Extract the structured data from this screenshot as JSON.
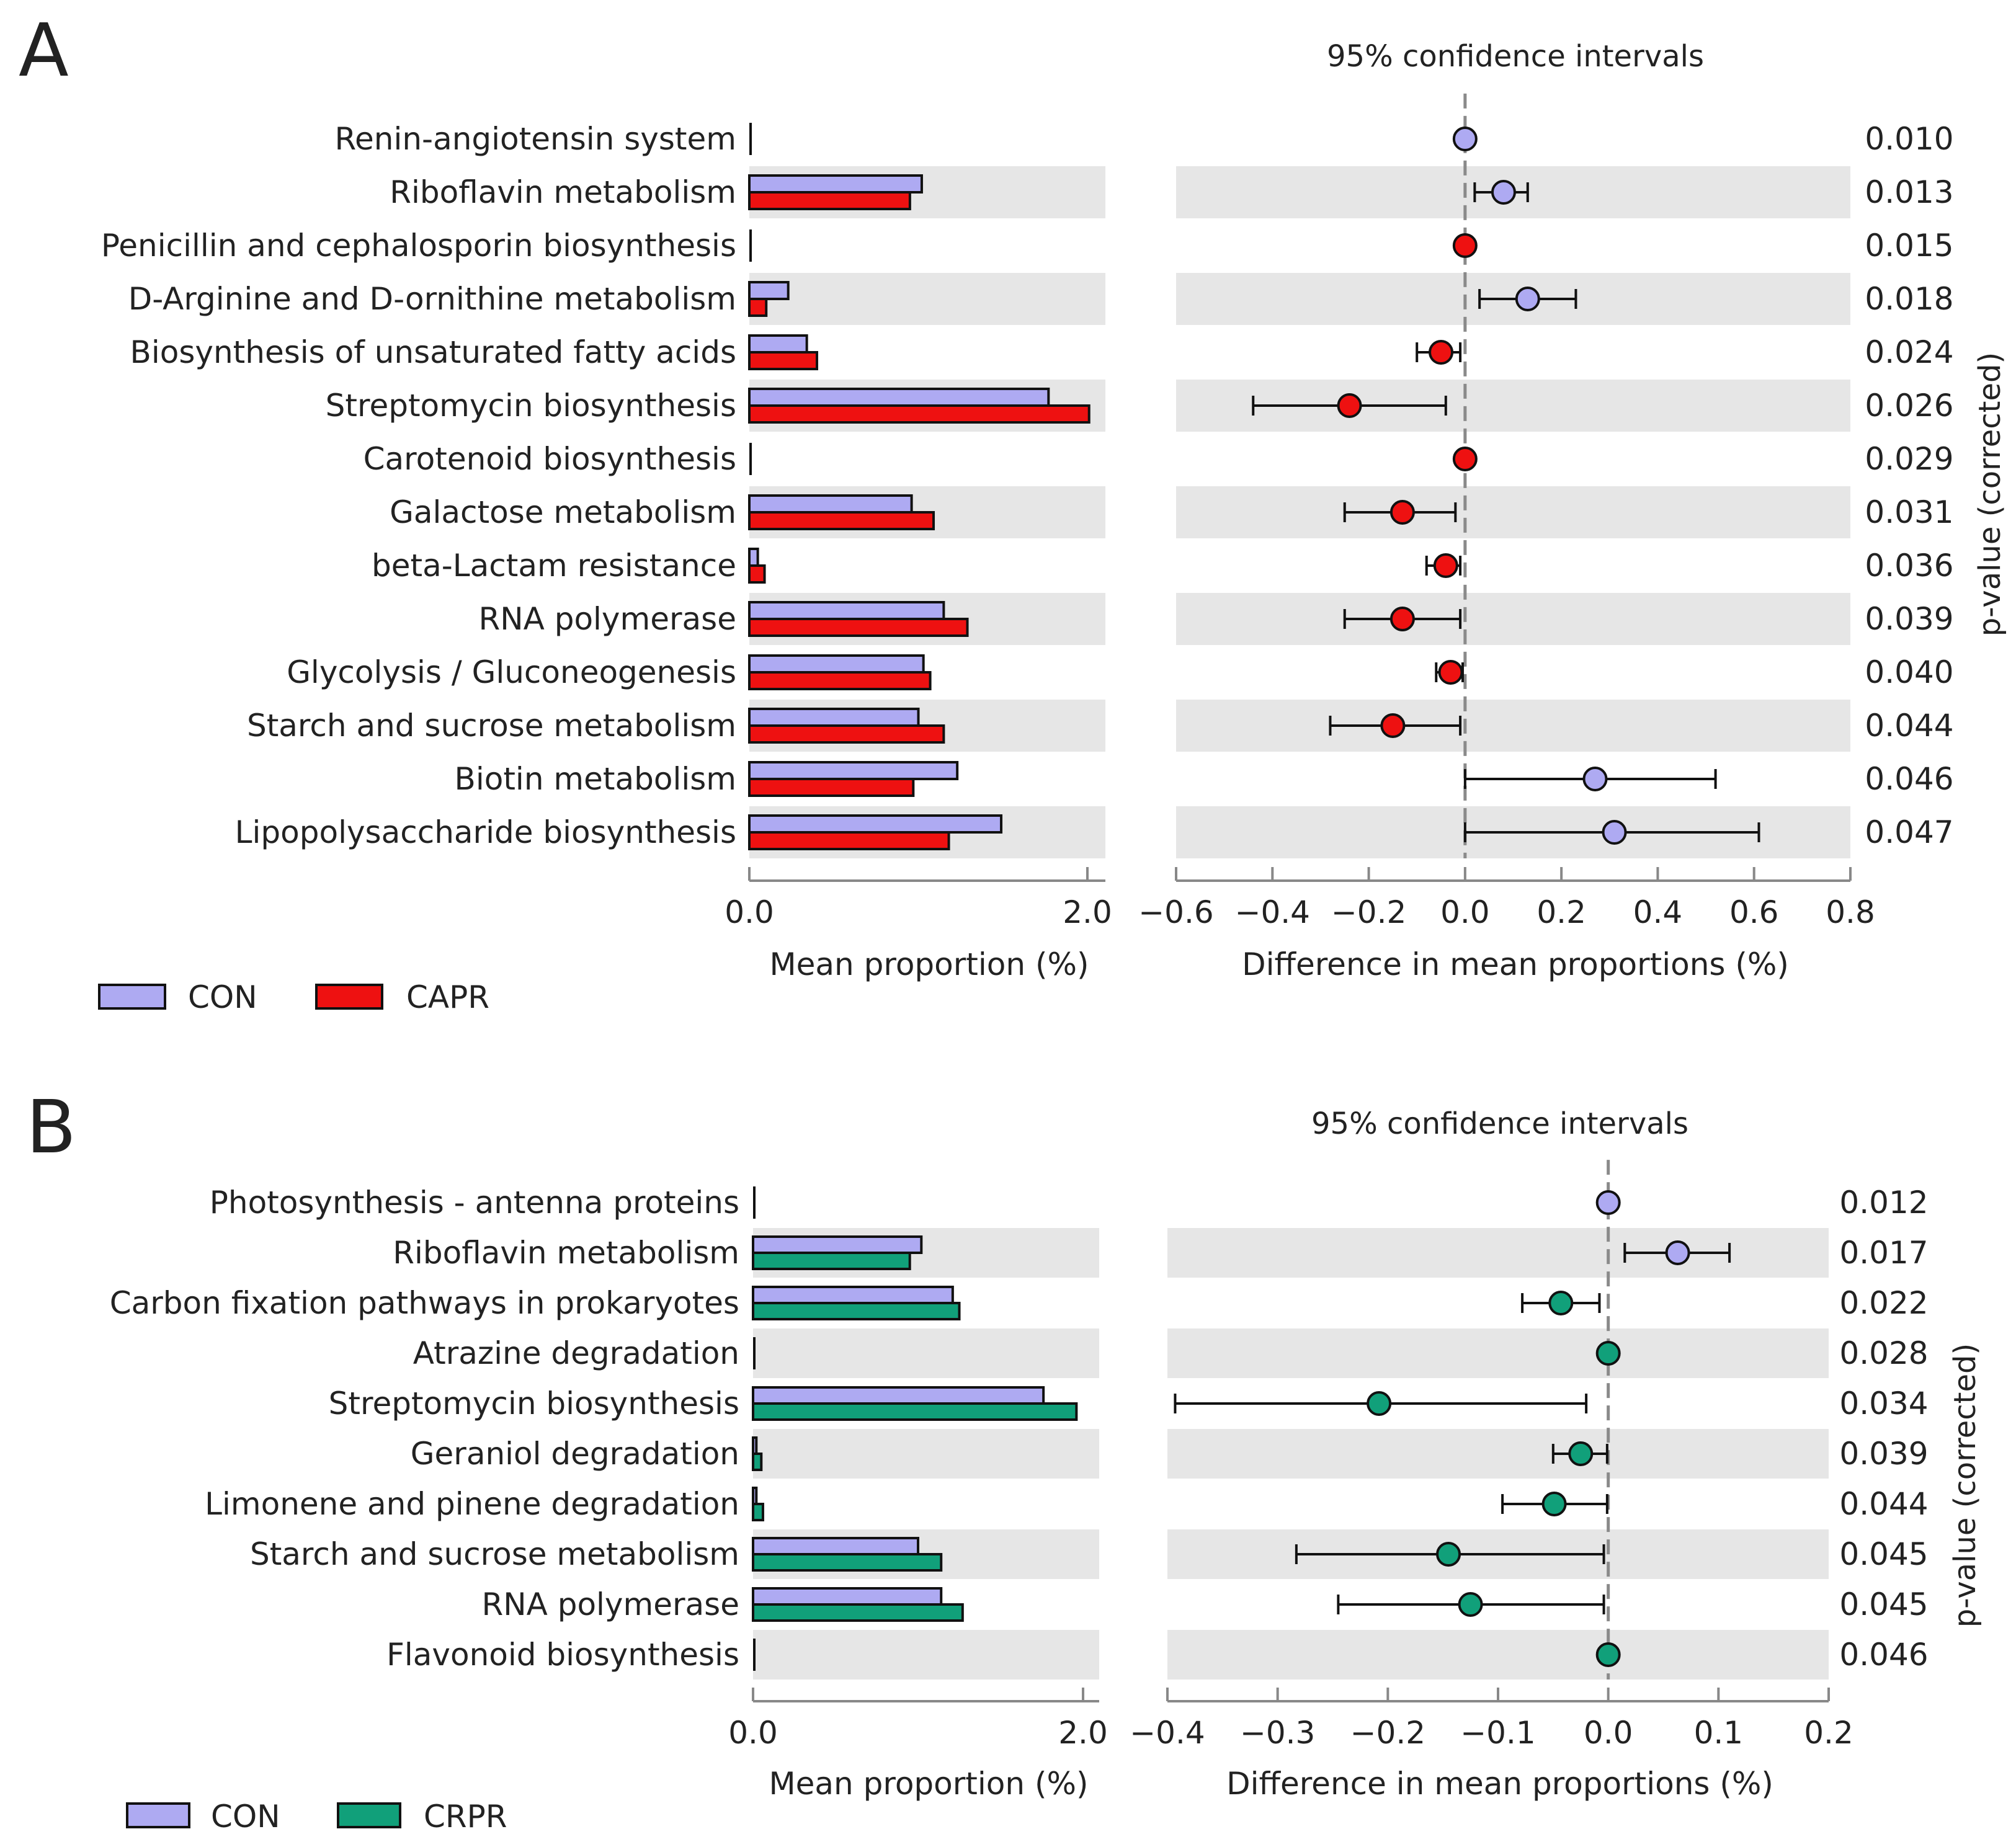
{
  "panels": [
    {
      "letter": "A",
      "ci_title": "95% confidence intervals",
      "bar_xlabel": "Mean proportion (%)",
      "diff_xlabel": "Difference in mean proportions (%)",
      "pvalue_label": "p-value (corrected)",
      "bar_ticks": [
        "0.0",
        "2.0"
      ],
      "diff_ticks": [
        "−0.6",
        "−0.4",
        "−0.2",
        "0.0",
        "0.2",
        "0.4",
        "0.6",
        "0.8"
      ],
      "legend": [
        {
          "label": "CON",
          "color": "#aeaaf2"
        },
        {
          "label": "CAPR",
          "color": "#ee1111"
        }
      ]
    },
    {
      "letter": "B",
      "ci_title": "95% confidence intervals",
      "bar_xlabel": "Mean proportion (%)",
      "diff_xlabel": "Difference in mean proportions (%)",
      "pvalue_label": "p-value (corrected)",
      "bar_ticks": [
        "0.0",
        "2.0"
      ],
      "diff_ticks": [
        "−0.4",
        "−0.3",
        "−0.2",
        "−0.1",
        "0.0",
        "0.1",
        "0.2"
      ],
      "legend": [
        {
          "label": "CON",
          "color": "#aeaaf2"
        },
        {
          "label": "CRPR",
          "color": "#11a07a"
        }
      ]
    }
  ],
  "chart_data": [
    {
      "type": "bar+errorbar",
      "panel": "A",
      "title": "95% confidence intervals",
      "groups": [
        "CON",
        "CAPR"
      ],
      "colors": {
        "CON": "#aeaaf2",
        "CAPR": "#ee1111"
      },
      "bar_xlim": [
        0,
        2.1
      ],
      "bar_xlabel": "Mean proportion (%)",
      "diff_xlim": [
        -0.6,
        0.8
      ],
      "diff_xlabel": "Difference in mean proportions (%)",
      "pvalue_label": "p-value (corrected)",
      "rows": [
        {
          "feature": "Renin-angiotensin system",
          "con": 0.0,
          "grp": 0.0,
          "diff": 0.0,
          "lo": 0.0,
          "hi": 0.0,
          "p": "0.010",
          "winner": "CON"
        },
        {
          "feature": "Riboflavin metabolism",
          "con": 1.02,
          "grp": 0.95,
          "diff": 0.08,
          "lo": 0.02,
          "hi": 0.13,
          "p": "0.013",
          "winner": "CON"
        },
        {
          "feature": "Penicillin and cephalosporin biosynthesis",
          "con": 0.0,
          "grp": 0.0,
          "diff": 0.0,
          "lo": 0.0,
          "hi": 0.0,
          "p": "0.015",
          "winner": "CAPR"
        },
        {
          "feature": "D-Arginine and D-ornithine metabolism",
          "con": 0.23,
          "grp": 0.1,
          "diff": 0.13,
          "lo": 0.03,
          "hi": 0.23,
          "p": "0.018",
          "winner": "CON"
        },
        {
          "feature": "Biosynthesis of unsaturated fatty acids",
          "con": 0.34,
          "grp": 0.4,
          "diff": -0.05,
          "lo": -0.1,
          "hi": -0.01,
          "p": "0.024",
          "winner": "CAPR"
        },
        {
          "feature": "Streptomycin biosynthesis",
          "con": 1.77,
          "grp": 2.01,
          "diff": -0.24,
          "lo": -0.44,
          "hi": -0.04,
          "p": "0.026",
          "winner": "CAPR"
        },
        {
          "feature": "Carotenoid biosynthesis",
          "con": 0.0,
          "grp": 0.0,
          "diff": 0.0,
          "lo": 0.0,
          "hi": 0.0,
          "p": "0.029",
          "winner": "CAPR"
        },
        {
          "feature": "Galactose metabolism",
          "con": 0.96,
          "grp": 1.09,
          "diff": -0.13,
          "lo": -0.25,
          "hi": -0.02,
          "p": "0.031",
          "winner": "CAPR"
        },
        {
          "feature": "beta-Lactam resistance",
          "con": 0.05,
          "grp": 0.09,
          "diff": -0.04,
          "lo": -0.08,
          "hi": -0.01,
          "p": "0.036",
          "winner": "CAPR"
        },
        {
          "feature": "RNA polymerase",
          "con": 1.15,
          "grp": 1.29,
          "diff": -0.13,
          "lo": -0.25,
          "hi": -0.01,
          "p": "0.039",
          "winner": "CAPR"
        },
        {
          "feature": "Glycolysis / Gluconeogenesis",
          "con": 1.03,
          "grp": 1.07,
          "diff": -0.03,
          "lo": -0.06,
          "hi": -0.005,
          "p": "0.040",
          "winner": "CAPR"
        },
        {
          "feature": "Starch and sucrose metabolism",
          "con": 1.0,
          "grp": 1.15,
          "diff": -0.15,
          "lo": -0.28,
          "hi": -0.01,
          "p": "0.044",
          "winner": "CAPR"
        },
        {
          "feature": "Biotin metabolism",
          "con": 1.23,
          "grp": 0.97,
          "diff": 0.27,
          "lo": 0.0,
          "hi": 0.52,
          "p": "0.046",
          "winner": "CON"
        },
        {
          "feature": "Lipopolysaccharide biosynthesis",
          "con": 1.49,
          "grp": 1.18,
          "diff": 0.31,
          "lo": 0.0,
          "hi": 0.61,
          "p": "0.047",
          "winner": "CON"
        }
      ]
    },
    {
      "type": "bar+errorbar",
      "panel": "B",
      "title": "95% confidence intervals",
      "groups": [
        "CON",
        "CRPR"
      ],
      "colors": {
        "CON": "#aeaaf2",
        "CRPR": "#11a07a"
      },
      "bar_xlim": [
        0,
        2.1
      ],
      "bar_xlabel": "Mean proportion (%)",
      "diff_xlim": [
        -0.4,
        0.2
      ],
      "diff_xlabel": "Difference in mean proportions (%)",
      "pvalue_label": "p-value (corrected)",
      "rows": [
        {
          "feature": "Photosynthesis - antenna proteins",
          "con": 0.0,
          "grp": 0.0,
          "diff": 0.0,
          "lo": 0.0,
          "hi": 0.0,
          "p": "0.012",
          "winner": "CON"
        },
        {
          "feature": "Riboflavin metabolism",
          "con": 1.02,
          "grp": 0.95,
          "diff": 0.063,
          "lo": 0.015,
          "hi": 0.11,
          "p": "0.017",
          "winner": "CON"
        },
        {
          "feature": "Carbon fixation pathways in prokaryotes",
          "con": 1.21,
          "grp": 1.25,
          "diff": -0.043,
          "lo": -0.078,
          "hi": -0.008,
          "p": "0.022",
          "winner": "CRPR"
        },
        {
          "feature": "Atrazine degradation",
          "con": 0.0,
          "grp": 0.0,
          "diff": 0.0,
          "lo": 0.0,
          "hi": 0.0,
          "p": "0.028",
          "winner": "CRPR"
        },
        {
          "feature": "Streptomycin biosynthesis",
          "con": 1.76,
          "grp": 1.96,
          "diff": -0.208,
          "lo": -0.393,
          "hi": -0.02,
          "p": "0.034",
          "winner": "CRPR"
        },
        {
          "feature": "Geraniol degradation",
          "con": 0.02,
          "grp": 0.05,
          "diff": -0.025,
          "lo": -0.05,
          "hi": -0.001,
          "p": "0.039",
          "winner": "CRPR"
        },
        {
          "feature": "Limonene and pinene degradation",
          "con": 0.02,
          "grp": 0.06,
          "diff": -0.049,
          "lo": -0.096,
          "hi": -0.001,
          "p": "0.044",
          "winner": "CRPR"
        },
        {
          "feature": "Starch and sucrose metabolism",
          "con": 1.0,
          "grp": 1.14,
          "diff": -0.145,
          "lo": -0.283,
          "hi": -0.004,
          "p": "0.045",
          "winner": "CRPR"
        },
        {
          "feature": "RNA polymerase",
          "con": 1.14,
          "grp": 1.27,
          "diff": -0.125,
          "lo": -0.245,
          "hi": -0.004,
          "p": "0.045",
          "winner": "CRPR"
        },
        {
          "feature": "Flavonoid biosynthesis",
          "con": 0.0,
          "grp": 0.0,
          "diff": 0.0,
          "lo": 0.0,
          "hi": 0.0,
          "p": "0.046",
          "winner": "CRPR"
        }
      ]
    }
  ]
}
